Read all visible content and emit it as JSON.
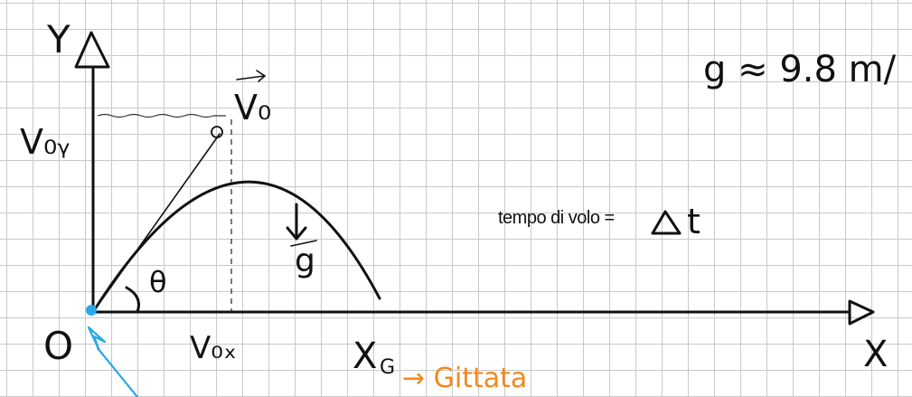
{
  "labels": {
    "y_axis": "Y",
    "x_axis": "X",
    "origin": "O",
    "v0": "V₀",
    "v0y": "V₀ᵧ",
    "v0x": "V₀ₓ",
    "theta": "θ",
    "xg": "X",
    "xg_sub": "G",
    "g_vector": "g",
    "gittata": "→ Gittata",
    "gravity": "g ≈ 9.8 m/",
    "flight_time": "tempo di volo ="
  },
  "colors": {
    "ink": "#111111",
    "grid": "#c9c9c9",
    "orange": "#f08a1c",
    "blue": "#29a8e6"
  }
}
